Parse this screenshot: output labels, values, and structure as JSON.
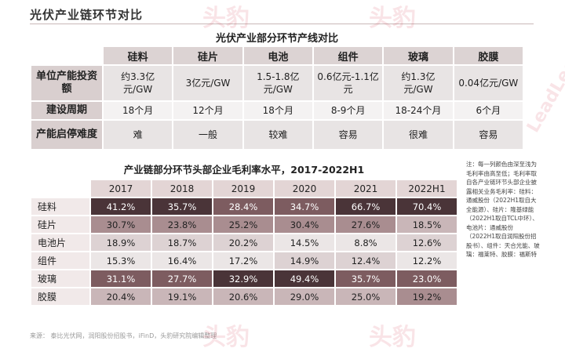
{
  "page_title": "光伏产业链环节对比",
  "table1": {
    "title": "光伏产业部分环节产线对比",
    "columns": [
      "硅料",
      "硅片",
      "电池",
      "组件",
      "玻璃",
      "胶膜"
    ],
    "rows": [
      {
        "label": "单位产能投资额",
        "cells": [
          "约3.3亿元/GW",
          "3亿元/GW",
          "1.5-1.8亿元/GW",
          "0.6亿元-1.1亿元",
          "约1.3亿元/GW",
          "0.04亿元/GW"
        ]
      },
      {
        "label": "建设周期",
        "cells": [
          "18个月",
          "12个月",
          "18个月",
          "8-9个月",
          "18-24个月",
          "6个月"
        ]
      },
      {
        "label": "产能启停难度",
        "cells": [
          "难",
          "一般",
          "较难",
          "容易",
          "很难",
          "容易"
        ]
      }
    ]
  },
  "table2": {
    "title": "产业链部分环节头部企业毛利率水平，2017-2022H1",
    "years": [
      "2017",
      "2018",
      "2019",
      "2020",
      "2021",
      "2022H1"
    ],
    "rows": [
      {
        "label": "硅料",
        "values": [
          "41.2%",
          "35.7%",
          "28.4%",
          "34.7%",
          "66.7%",
          "70.4%"
        ]
      },
      {
        "label": "硅片",
        "values": [
          "30.7%",
          "23.8%",
          "25.2%",
          "30.4%",
          "27.6%",
          "18.5%"
        ]
      },
      {
        "label": "电池片",
        "values": [
          "18.9%",
          "18.7%",
          "20.2%",
          "14.5%",
          "8.8%",
          "12.6%"
        ]
      },
      {
        "label": "组件",
        "values": [
          "15.3%",
          "16.4%",
          "17.2%",
          "14.9%",
          "12.4%",
          "12.2%"
        ]
      },
      {
        "label": "玻璃",
        "values": [
          "31.1%",
          "27.7%",
          "32.9%",
          "49.4%",
          "35.7%",
          "23.0%"
        ]
      },
      {
        "label": "胶膜",
        "values": [
          "20.4%",
          "19.1%",
          "20.6%",
          "29.0%",
          "25.0%",
          "19.2%"
        ]
      }
    ]
  },
  "note": "注：每一列颜色由深至浅为毛利率由高至低；毛利率取自各产业链环节头部企业披露相关业务毛利率：硅料：通威股份（2022H1取自大全能源）、硅片：隆基绿能（2022H1取自TCL中环）、电池片：通威股份（2022H1取自润阳股份招股书）、组件：天合光能、玻璃：福莱特、胶膜：福斯特",
  "source": "来源：  泰比光伏网，润阳股份招股书，iFinD，头豹研究院编辑整理",
  "watermark": "头豹",
  "watermark_sub": "LeadLeo",
  "colors": {
    "heat_0": "#4a3438",
    "heat_1": "#7d5c60",
    "heat_2": "#a98d90",
    "heat_3": "#c9b6b8",
    "heat_4": "#ddd2d3",
    "heat_5": "#ebe6e6"
  }
}
